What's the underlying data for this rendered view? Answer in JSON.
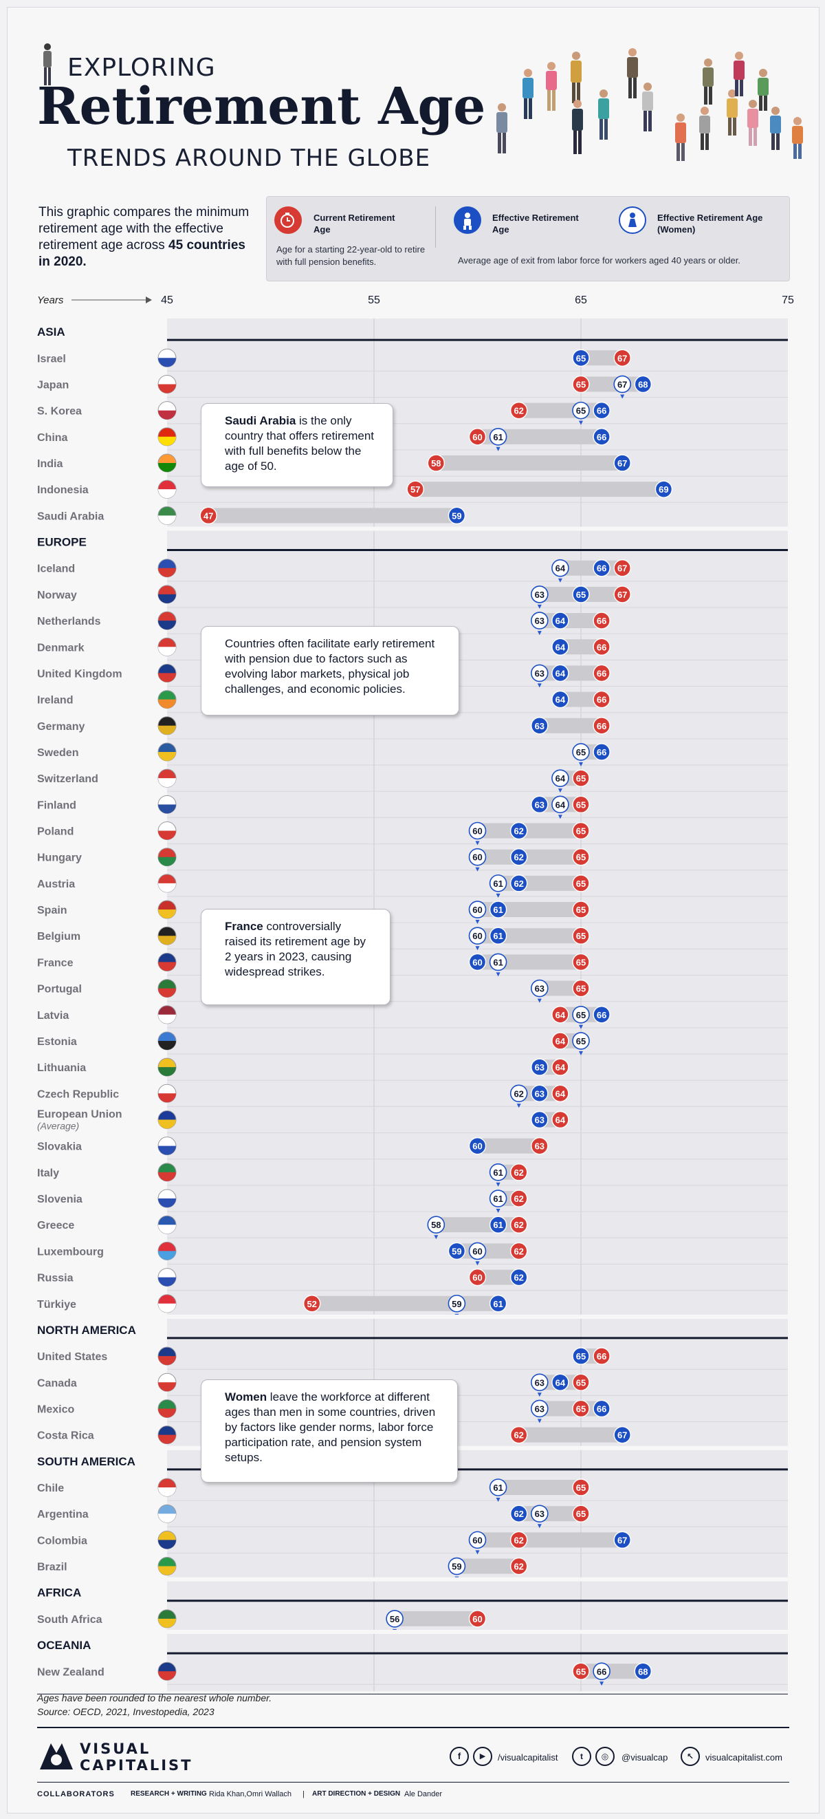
{
  "header": {
    "line1": "EXPLORING",
    "line2": "Retirement Age",
    "line3": "TRENDS AROUND THE GLOBE"
  },
  "intro": {
    "text_a": "This graphic compares the minimum retirement age with the effective retirement age across ",
    "text_b": "45 countries in 2020."
  },
  "legend": {
    "current_title": "Current Retirement Age",
    "current_desc": "Age for a starting 22-year-old to retire with full pension benefits.",
    "effective_title": "Effective Retirement Age",
    "women_title": "Effective Retirement Age (Women)",
    "effective_desc": "Average age of exit from labor force for workers aged 40 years or older."
  },
  "notes": {
    "saudi_bold": "Saudi Arabia",
    "saudi_text": " is the only country that offers retirement with full benefits below the age of 50.",
    "europe_text": "Countries often facilitate early retirement with pension due to factors such as evolving labor markets, physical job challenges, and economic policies.",
    "france_bold": "France",
    "france_text": " controversially raised its retirement age by 2 years in 2023, causing widespread strikes.",
    "women_bold": "Women",
    "women_text": " leave the workforce at different ages than men in some countries, driven by factors like gender norms, labor force participation rate, and pension system setups."
  },
  "footer": {
    "rounding": "Ages have been rounded to the nearest whole number.",
    "source": "Source: OECD, 2021, Investopedia, 2023",
    "logo_line1": "VISUAL",
    "logo_line2": "CAPITALIST",
    "social_1": "/visualcapitalist",
    "social_2": "@visualcap",
    "social_3": "visualcapitalist.com",
    "collaborators_label": "COLLABORATORS",
    "research_label": "RESEARCH + WRITING",
    "research_names": "Rida Khan,Omri Wallach",
    "art_label": "ART DIRECTION + DESIGN",
    "art_names": "Ale Dander"
  },
  "colors": {
    "current": "#d63a32",
    "effective": "#1c4fc4",
    "women": "#ffffff",
    "bar": "#cbcbcf",
    "plot_bg": "#e9e9ed",
    "dark": "#141a2e"
  },
  "chart_data": {
    "type": "dumbbell",
    "x_label": "Years",
    "x_ticks": [
      45,
      55,
      65,
      75
    ],
    "x_range": [
      45,
      75
    ],
    "series": [
      {
        "name": "Current Retirement Age",
        "key": "current"
      },
      {
        "name": "Effective Retirement Age",
        "key": "effective"
      },
      {
        "name": "Effective Retirement Age (Women)",
        "key": "women"
      }
    ],
    "regions": [
      {
        "name": "ASIA",
        "countries": [
          {
            "name": "Israel",
            "flag": [
              "#ffffff",
              "#2a4fb0"
            ],
            "current": 67,
            "effective": 65,
            "women": null
          },
          {
            "name": "Japan",
            "flag": [
              "#ffffff",
              "#d63a32"
            ],
            "current": 65,
            "effective": 68,
            "women": 67
          },
          {
            "name": "S. Korea",
            "flag": [
              "#ffffff",
              "#c03040"
            ],
            "current": 62,
            "effective": 66,
            "women": 65
          },
          {
            "name": "China",
            "flag": [
              "#de2910",
              "#ffde00"
            ],
            "current": 60,
            "effective": 66,
            "women": 61
          },
          {
            "name": "India",
            "flag": [
              "#ff9933",
              "#138808"
            ],
            "current": 58,
            "effective": 67,
            "women": null
          },
          {
            "name": "Indonesia",
            "flag": [
              "#e0303a",
              "#ffffff"
            ],
            "current": 57,
            "effective": 69,
            "women": null
          },
          {
            "name": "Saudi Arabia",
            "flag": [
              "#3a8a4a",
              "#ffffff"
            ],
            "current": 47,
            "effective": 59,
            "women": null
          }
        ]
      },
      {
        "name": "EUROPE",
        "countries": [
          {
            "name": "Iceland",
            "flag": [
              "#2a4fb0",
              "#d63a32"
            ],
            "current": 67,
            "effective": 66,
            "women": 64
          },
          {
            "name": "Norway",
            "flag": [
              "#d63a32",
              "#1c3a8a"
            ],
            "current": 67,
            "effective": 65,
            "women": 63
          },
          {
            "name": "Netherlands",
            "flag": [
              "#d63a32",
              "#1c3a8a"
            ],
            "current": 66,
            "effective": 64,
            "women": 63
          },
          {
            "name": "Denmark",
            "flag": [
              "#d63a32",
              "#ffffff"
            ],
            "current": 66,
            "effective": 64,
            "women": null
          },
          {
            "name": "United Kingdom",
            "flag": [
              "#1c3a8a",
              "#d63a32"
            ],
            "current": 66,
            "effective": 64,
            "women": 63
          },
          {
            "name": "Ireland",
            "flag": [
              "#2a9a4a",
              "#f08a2a"
            ],
            "current": 66,
            "effective": 64,
            "women": null
          },
          {
            "name": "Germany",
            "flag": [
              "#222222",
              "#e0b020"
            ],
            "current": 66,
            "effective": 63,
            "women": null
          },
          {
            "name": "Sweden",
            "flag": [
              "#2a5aa0",
              "#f0c020"
            ],
            "current": 65,
            "effective": 66,
            "women": 65
          },
          {
            "name": "Switzerland",
            "flag": [
              "#d63a32",
              "#ffffff"
            ],
            "current": 65,
            "effective": null,
            "women": 64
          },
          {
            "name": "Finland",
            "flag": [
              "#ffffff",
              "#2a4fa0"
            ],
            "current": 65,
            "effective": 63,
            "women": 64
          },
          {
            "name": "Poland",
            "flag": [
              "#ffffff",
              "#d63a32"
            ],
            "current": 65,
            "effective": 62,
            "women": 60
          },
          {
            "name": "Hungary",
            "flag": [
              "#d63a32",
              "#2a8a4a"
            ],
            "current": 65,
            "effective": 62,
            "women": 60
          },
          {
            "name": "Austria",
            "flag": [
              "#d63a32",
              "#ffffff"
            ],
            "current": 65,
            "effective": 62,
            "women": 61
          },
          {
            "name": "Spain",
            "flag": [
              "#c8302a",
              "#f0c020"
            ],
            "current": 65,
            "effective": 61,
            "women": 60
          },
          {
            "name": "Belgium",
            "flag": [
              "#222222",
              "#e0b020"
            ],
            "current": 65,
            "effective": 61,
            "women": 60
          },
          {
            "name": "France",
            "flag": [
              "#1c3a8a",
              "#d63a32"
            ],
            "current": 65,
            "effective": 60,
            "women": 61
          },
          {
            "name": "Portugal",
            "flag": [
              "#2a7a3a",
              "#d63a32"
            ],
            "current": 65,
            "effective": null,
            "women": 63
          },
          {
            "name": "Latvia",
            "flag": [
              "#9a2a3a",
              "#ffffff"
            ],
            "current": 64,
            "effective": 66,
            "women": 65
          },
          {
            "name": "Estonia",
            "flag": [
              "#3a7ad0",
              "#222222"
            ],
            "current": 64,
            "effective": null,
            "women": 65
          },
          {
            "name": "Lithuania",
            "flag": [
              "#f0c020",
              "#2a7a3a"
            ],
            "current": 64,
            "effective": 63,
            "women": null
          },
          {
            "name": "Czech Republic",
            "flag": [
              "#ffffff",
              "#d63a32"
            ],
            "current": 64,
            "effective": 63,
            "women": 62
          },
          {
            "name": "European Union",
            "sub": "(Average)",
            "flag": [
              "#1c3a9a",
              "#f0c020"
            ],
            "current": 64,
            "effective": 63,
            "women": null
          },
          {
            "name": "Slovakia",
            "flag": [
              "#ffffff",
              "#2a4fb0"
            ],
            "current": 63,
            "effective": 60,
            "women": null
          },
          {
            "name": "Italy",
            "flag": [
              "#2a8a4a",
              "#d63a32"
            ],
            "current": 62,
            "effective": null,
            "women": 61
          },
          {
            "name": "Slovenia",
            "flag": [
              "#ffffff",
              "#2a4fb0"
            ],
            "current": 62,
            "effective": null,
            "women": 61
          },
          {
            "name": "Greece",
            "flag": [
              "#2a5ab0",
              "#ffffff"
            ],
            "current": 62,
            "effective": 61,
            "women": 58
          },
          {
            "name": "Luxembourg",
            "flag": [
              "#e0303a",
              "#4aa0e0"
            ],
            "current": 62,
            "effective": 59,
            "women": 60
          },
          {
            "name": "Russia",
            "flag": [
              "#ffffff",
              "#2a4fb0"
            ],
            "current": 60,
            "effective": 62,
            "women": null
          },
          {
            "name": "Türkiye",
            "flag": [
              "#e0303a",
              "#ffffff"
            ],
            "current": 52,
            "effective": 61,
            "women": 59
          }
        ]
      },
      {
        "name": "NORTH AMERICA",
        "countries": [
          {
            "name": "United States",
            "flag": [
              "#1c3a8a",
              "#d63a32"
            ],
            "current": 66,
            "effective": 65,
            "women": null
          },
          {
            "name": "Canada",
            "flag": [
              "#ffffff",
              "#d63a32"
            ],
            "current": 65,
            "effective": 64,
            "women": 63
          },
          {
            "name": "Mexico",
            "flag": [
              "#2a8a4a",
              "#d63a32"
            ],
            "current": 65,
            "effective": 66,
            "women": 63
          },
          {
            "name": "Costa Rica",
            "flag": [
              "#1c3a8a",
              "#d63a32"
            ],
            "current": 62,
            "effective": 67,
            "women": null
          }
        ]
      },
      {
        "name": "SOUTH AMERICA",
        "countries": [
          {
            "name": "Chile",
            "flag": [
              "#d63a32",
              "#ffffff"
            ],
            "current": 65,
            "effective": null,
            "women": 61
          },
          {
            "name": "Argentina",
            "flag": [
              "#74acdf",
              "#ffffff"
            ],
            "current": 65,
            "effective": 62,
            "women": 63
          },
          {
            "name": "Colombia",
            "flag": [
              "#f0c020",
              "#1c3a8a"
            ],
            "current": 62,
            "effective": 67,
            "women": 60
          },
          {
            "name": "Brazil",
            "flag": [
              "#2a9a4a",
              "#f0c020"
            ],
            "current": 62,
            "effective": null,
            "women": 59
          }
        ]
      },
      {
        "name": "AFRICA",
        "countries": [
          {
            "name": "South Africa",
            "flag": [
              "#2a7a3a",
              "#f0c020"
            ],
            "current": 60,
            "effective": null,
            "women": 56
          }
        ]
      },
      {
        "name": "OCEANIA",
        "countries": [
          {
            "name": "New Zealand",
            "flag": [
              "#1c3a8a",
              "#d63a32"
            ],
            "current": 65,
            "effective": 68,
            "women": 66
          }
        ]
      }
    ]
  }
}
